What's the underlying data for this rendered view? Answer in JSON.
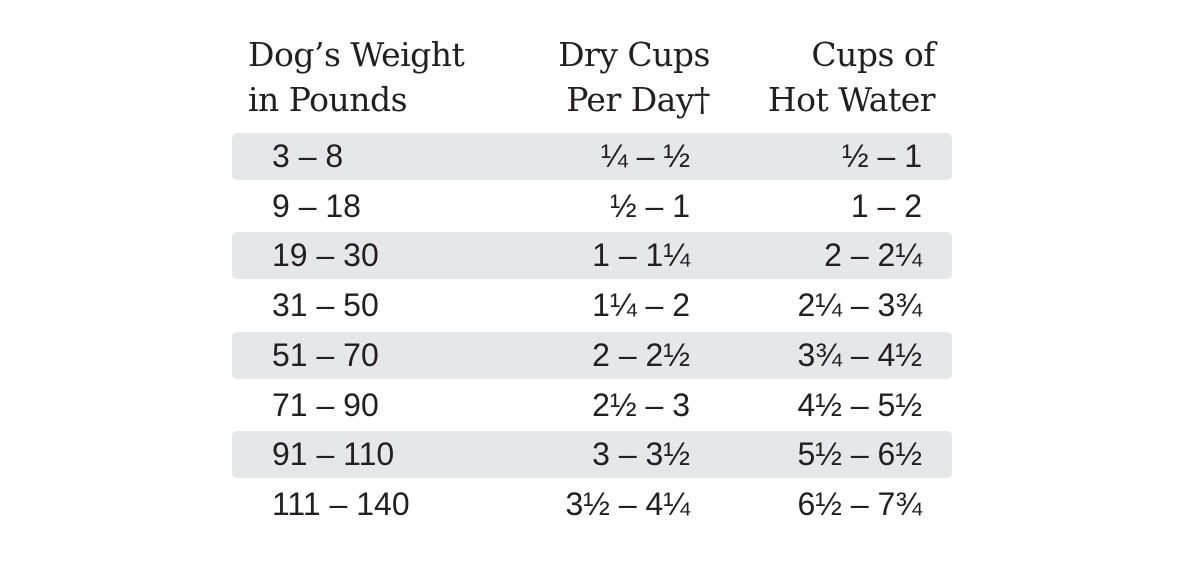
{
  "table": {
    "headers": [
      [
        "Dog’s Weight",
        "in Pounds"
      ],
      [
        "Dry Cups",
        "Per Day†"
      ],
      [
        "Cups of",
        "Hot Water"
      ]
    ],
    "rows": [
      [
        "3 – 8",
        "¼ – ½",
        "½ – 1"
      ],
      [
        "9 – 18",
        "½ – 1",
        "1 – 2"
      ],
      [
        "19 – 30",
        "1 – 1¼",
        "2 – 2¼"
      ],
      [
        "31 – 50",
        "1¼ – 2",
        "2¼ – 3¾"
      ],
      [
        "51 – 70",
        "2 – 2½",
        "3¾ – 4½"
      ],
      [
        "71 – 90",
        "2½ – 3",
        "4½ – 5½"
      ],
      [
        "91 – 110",
        "3 – 3½",
        "5½ – 6½"
      ],
      [
        "111 – 140",
        "3½ – 4¼",
        "6½ – 7¾"
      ]
    ]
  }
}
